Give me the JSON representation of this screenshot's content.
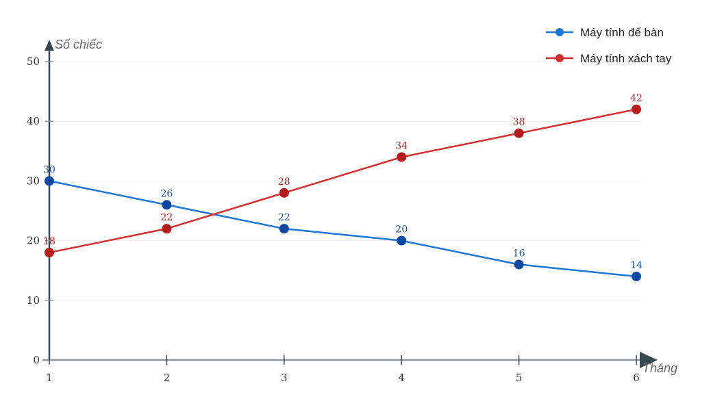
{
  "chart_data": {
    "type": "line",
    "xlabel": "Tháng",
    "ylabel": "Số chiếc",
    "x": [
      1,
      2,
      3,
      4,
      5,
      6
    ],
    "x_ticks": [
      "1",
      "2",
      "3",
      "4",
      "5",
      "6"
    ],
    "y_ticks": [
      "0",
      "10",
      "20",
      "30",
      "40",
      "50"
    ],
    "ylim": [
      0,
      50
    ],
    "grid": true,
    "legend_position": "top-right",
    "series": [
      {
        "name": "Máy tính để bàn",
        "values": [
          30,
          26,
          22,
          20,
          16,
          14
        ],
        "color": "#1f77d4",
        "marker_color": "#0d47a1",
        "label_color": "#1a4f9c"
      },
      {
        "name": "Máy tính xách tay",
        "values": [
          18,
          22,
          28,
          34,
          38,
          42
        ],
        "color": "#d32f2f",
        "marker_color": "#b71c1c",
        "label_color": "#b71c1c"
      }
    ]
  }
}
